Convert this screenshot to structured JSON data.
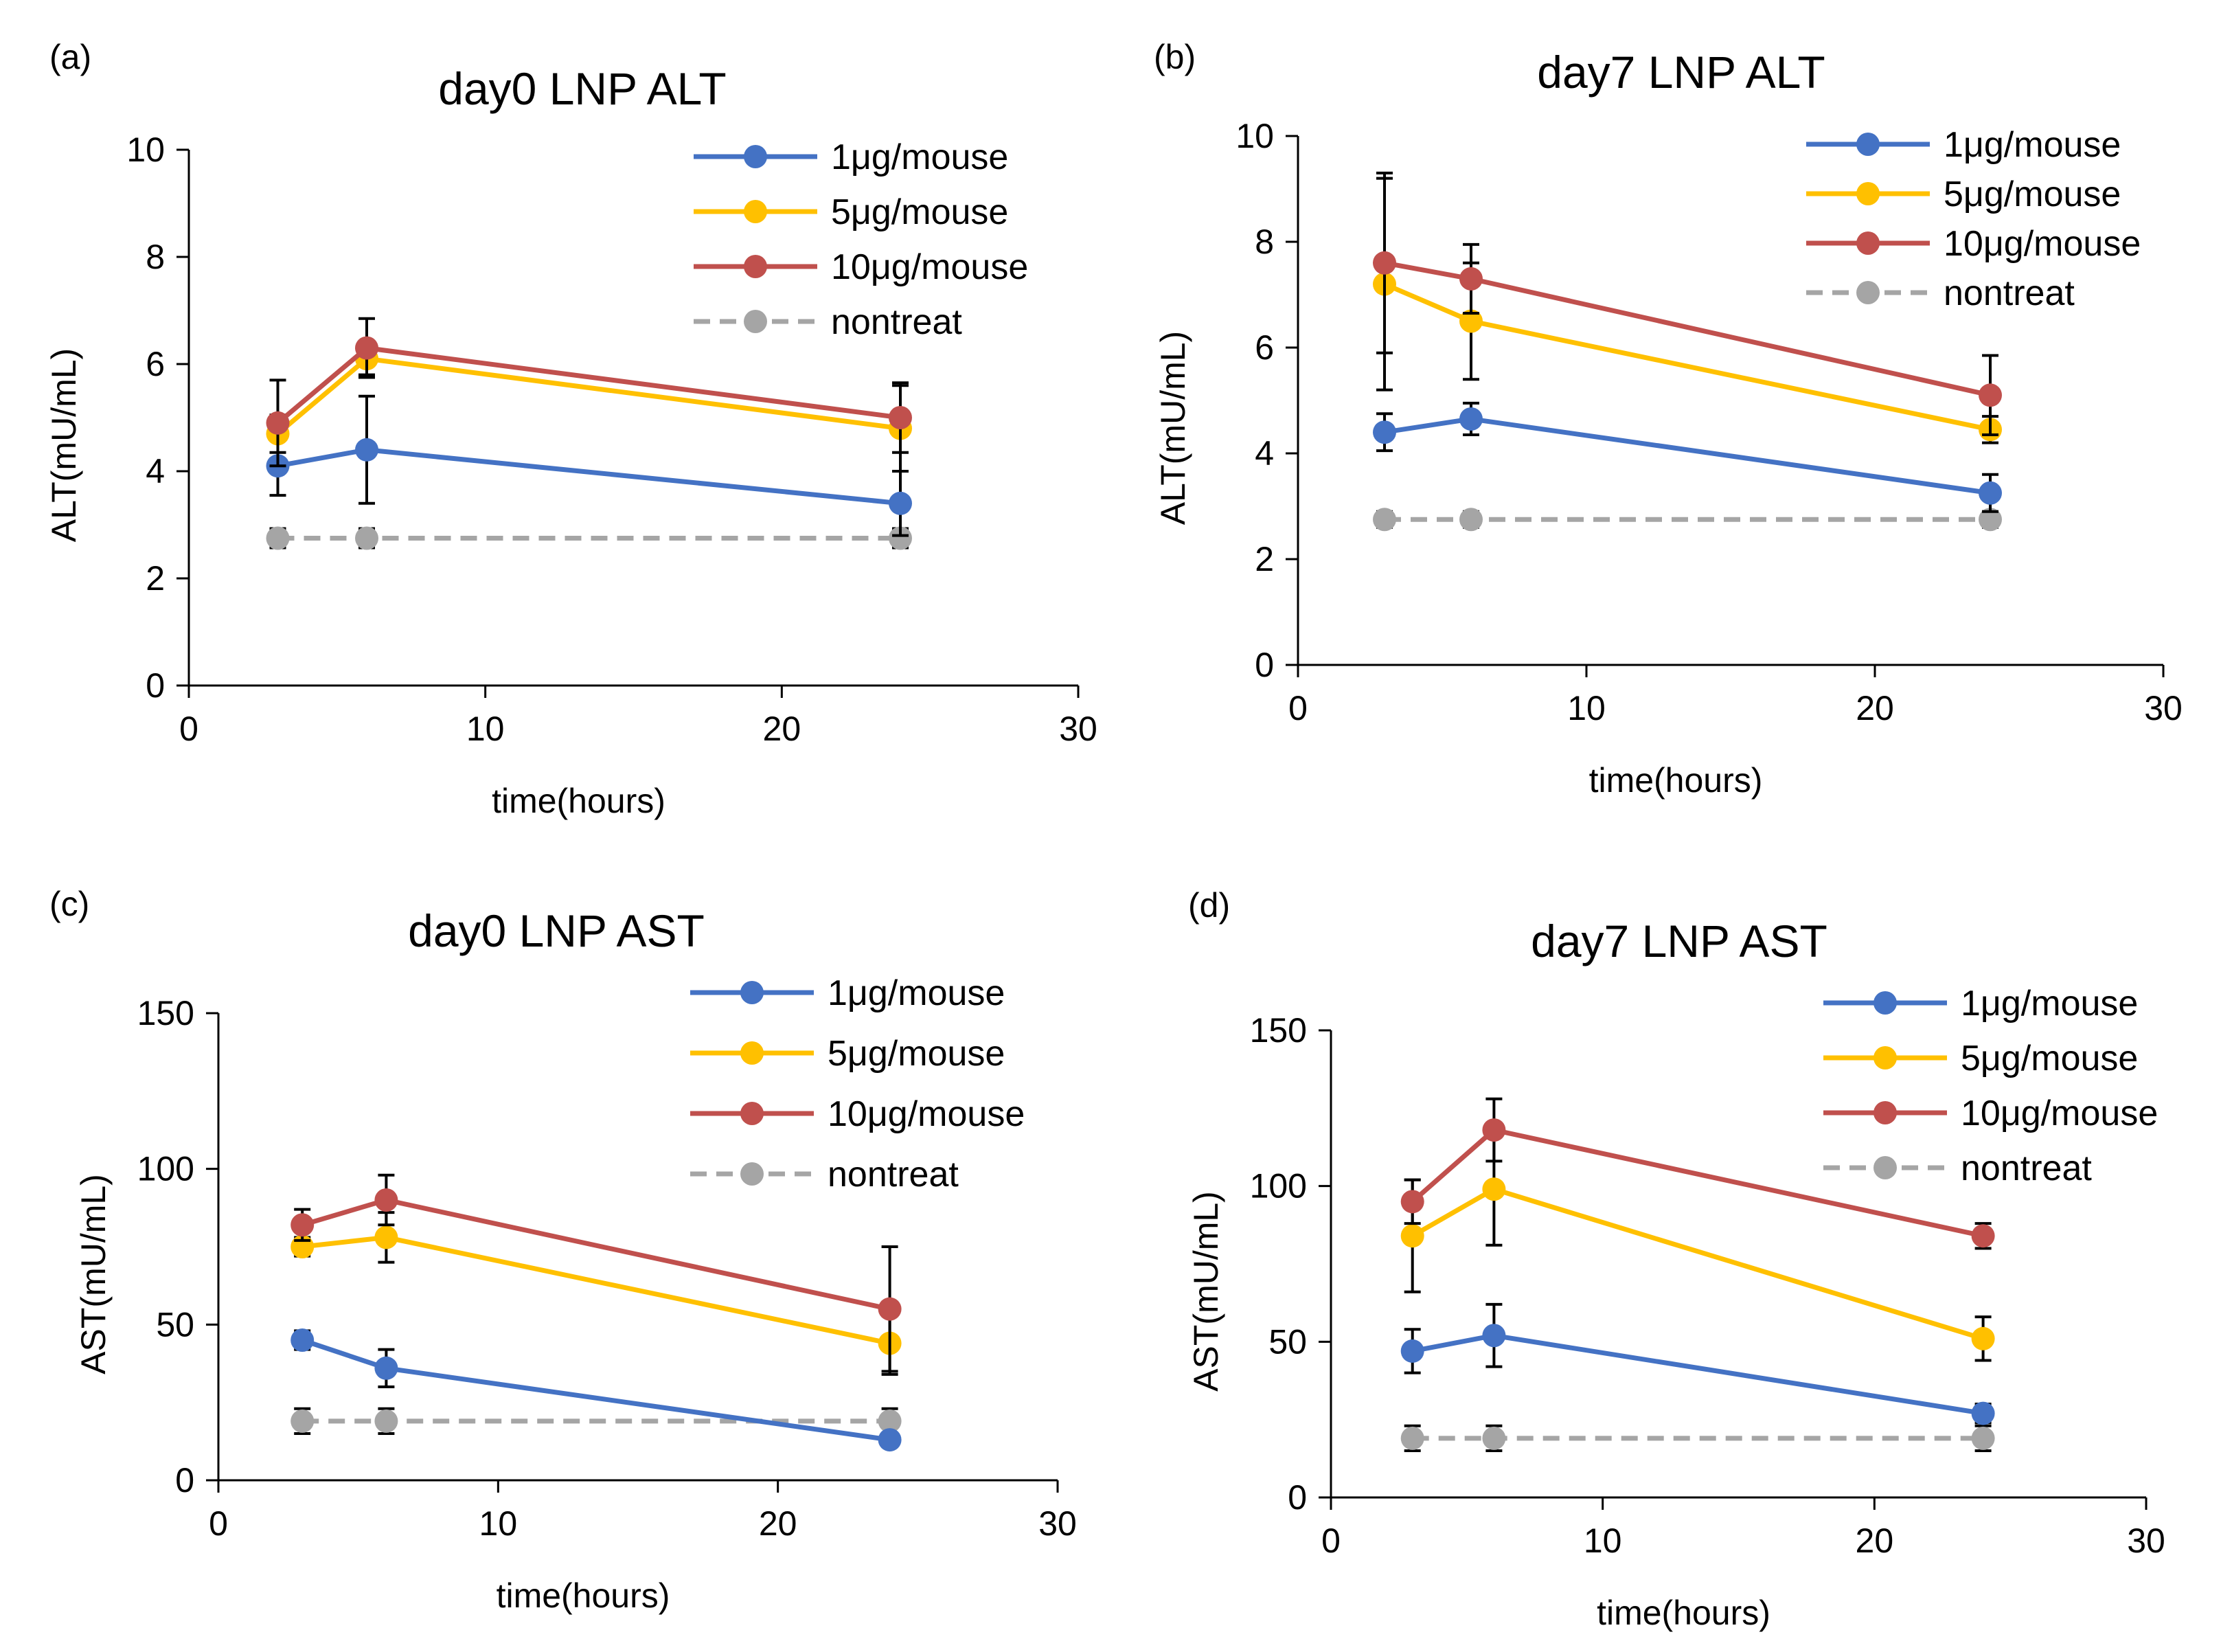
{
  "chart_data": [
    {
      "type": "line",
      "panel": "(a)",
      "title": "day0 LNP ALT",
      "xlabel": "time(hours)",
      "ylabel": "ALT(mU/mL)",
      "xlim": [
        0,
        30
      ],
      "ylim": [
        0,
        10
      ],
      "xticks": [
        0,
        10,
        20,
        30
      ],
      "yticks": [
        0,
        2,
        4,
        6,
        8,
        10
      ],
      "legend": "top-right",
      "x": [
        3,
        6,
        24
      ],
      "series": [
        {
          "name": "1μg/mouse",
          "color": "#4472C4",
          "dashed": false,
          "values": [
            4.1,
            4.4,
            3.4
          ],
          "errors": [
            0.55,
            1.0,
            0.6
          ]
        },
        {
          "name": "5μg/mouse",
          "color": "#FFC000",
          "dashed": false,
          "values": [
            4.7,
            6.1,
            4.8
          ],
          "errors": [
            0.35,
            0.3,
            0.8
          ]
        },
        {
          "name": "10μg/mouse",
          "color": "#C0504D",
          "dashed": false,
          "values": [
            4.9,
            6.3,
            5.0
          ],
          "errors": [
            0.8,
            0.55,
            0.65
          ]
        },
        {
          "name": "nontreat",
          "color": "#A5A5A5",
          "dashed": true,
          "values": [
            2.75,
            2.75,
            2.75
          ],
          "errors": [
            0.18,
            0.18,
            0.18
          ]
        }
      ]
    },
    {
      "type": "line",
      "panel": "(b)",
      "title": "day7 LNP ALT",
      "xlabel": "time(hours)",
      "ylabel": "ALT(mU/mL)",
      "xlim": [
        0,
        30
      ],
      "ylim": [
        0,
        10
      ],
      "xticks": [
        0,
        10,
        20,
        30
      ],
      "yticks": [
        0,
        2,
        4,
        6,
        8,
        10
      ],
      "legend": "top-right",
      "x": [
        3,
        6,
        24
      ],
      "series": [
        {
          "name": "1μg/mouse",
          "color": "#4472C4",
          "dashed": false,
          "values": [
            4.4,
            4.65,
            3.25
          ],
          "errors": [
            0.35,
            0.3,
            0.35
          ]
        },
        {
          "name": "5μg/mouse",
          "color": "#FFC000",
          "dashed": false,
          "values": [
            7.2,
            6.5,
            4.45
          ],
          "errors": [
            2.0,
            1.1,
            0.25
          ]
        },
        {
          "name": "10μg/mouse",
          "color": "#C0504D",
          "dashed": false,
          "values": [
            7.6,
            7.3,
            5.1
          ],
          "errors": [
            1.7,
            0.65,
            0.75
          ]
        },
        {
          "name": "nontreat",
          "color": "#A5A5A5",
          "dashed": true,
          "values": [
            2.75,
            2.75,
            2.75
          ],
          "errors": [
            0.15,
            0.15,
            0.15
          ]
        }
      ]
    },
    {
      "type": "line",
      "panel": "(c)",
      "title": "day0 LNP AST",
      "xlabel": "time(hours)",
      "ylabel": "AST(mU/mL)",
      "xlim": [
        0,
        30
      ],
      "ylim": [
        0,
        150
      ],
      "xticks": [
        0,
        10,
        20,
        30
      ],
      "yticks": [
        0,
        50,
        100,
        150
      ],
      "legend": "top-right",
      "x": [
        3,
        6,
        24
      ],
      "series": [
        {
          "name": "1μg/mouse",
          "color": "#4472C4",
          "dashed": false,
          "values": [
            45,
            36,
            13
          ],
          "errors": [
            3,
            6,
            2
          ]
        },
        {
          "name": "5μg/mouse",
          "color": "#FFC000",
          "dashed": false,
          "values": [
            75,
            78,
            44
          ],
          "errors": [
            3,
            8,
            10
          ]
        },
        {
          "name": "10μg/mouse",
          "color": "#C0504D",
          "dashed": false,
          "values": [
            82,
            90,
            55
          ],
          "errors": [
            5,
            8,
            20
          ]
        },
        {
          "name": "nontreat",
          "color": "#A5A5A5",
          "dashed": true,
          "values": [
            19,
            19,
            19
          ],
          "errors": [
            4,
            4,
            4
          ]
        }
      ]
    },
    {
      "type": "line",
      "panel": "(d)",
      "title": "day7 LNP AST",
      "xlabel": "time(hours)",
      "ylabel": "AST(mU/mL)",
      "xlim": [
        0,
        30
      ],
      "ylim": [
        0,
        150
      ],
      "xticks": [
        0,
        10,
        20,
        30
      ],
      "yticks": [
        0,
        50,
        100,
        150
      ],
      "legend": "top-right",
      "x": [
        3,
        6,
        24
      ],
      "series": [
        {
          "name": "1μg/mouse",
          "color": "#4472C4",
          "dashed": false,
          "values": [
            47,
            52,
            27
          ],
          "errors": [
            7,
            10,
            3
          ]
        },
        {
          "name": "5μg/mouse",
          "color": "#FFC000",
          "dashed": false,
          "values": [
            84,
            99,
            51
          ],
          "errors": [
            18,
            18,
            7
          ]
        },
        {
          "name": "10μg/mouse",
          "color": "#C0504D",
          "dashed": false,
          "values": [
            95,
            118,
            84
          ],
          "errors": [
            7,
            10,
            4
          ]
        },
        {
          "name": "nontreat",
          "color": "#A5A5A5",
          "dashed": true,
          "values": [
            19,
            19,
            19
          ],
          "errors": [
            4,
            4,
            4
          ]
        }
      ]
    }
  ]
}
